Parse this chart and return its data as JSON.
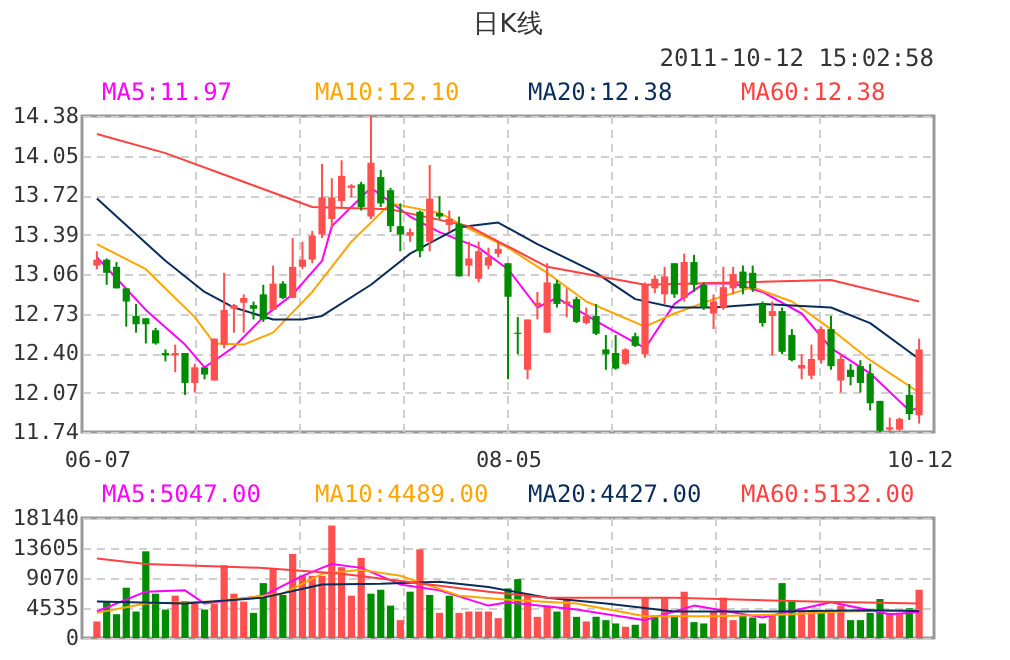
{
  "chart_data": [
    {
      "type": "candlestick",
      "title": "日K线",
      "annotations": [
        "2011-10-12 15:02:58"
      ],
      "categories": [
        "06-07",
        null,
        null,
        null,
        null,
        null,
        null,
        null,
        null,
        null,
        null,
        null,
        null,
        null,
        null,
        null,
        null,
        null,
        null,
        null,
        null,
        null,
        null,
        null,
        null,
        null,
        null,
        null,
        null,
        null,
        null,
        null,
        null,
        null,
        null,
        null,
        null,
        null,
        null,
        null,
        null,
        null,
        "08-05",
        null,
        null,
        null,
        null,
        null,
        null,
        null,
        null,
        null,
        null,
        null,
        null,
        null,
        null,
        null,
        null,
        null,
        null,
        null,
        null,
        null,
        null,
        null,
        null,
        null,
        null,
        null,
        null,
        null,
        null,
        null,
        null,
        null,
        null,
        null,
        null,
        null,
        null,
        null,
        null,
        null,
        "10-12"
      ],
      "ohlc": [
        [
          13.13,
          13.25,
          13.1,
          13.18
        ],
        [
          13.18,
          13.19,
          12.97,
          13.07
        ],
        [
          13.12,
          13.16,
          12.94,
          12.94
        ],
        [
          12.94,
          12.94,
          12.62,
          12.83
        ],
        [
          12.71,
          12.81,
          12.57,
          12.64
        ],
        [
          12.69,
          12.69,
          12.48,
          12.64
        ],
        [
          12.59,
          12.61,
          12.47,
          12.48
        ],
        [
          12.4,
          12.43,
          12.33,
          12.38
        ],
        [
          12.38,
          12.47,
          12.24,
          12.4
        ],
        [
          12.4,
          12.4,
          12.05,
          12.15
        ],
        [
          12.15,
          12.31,
          12.07,
          12.28
        ],
        [
          12.28,
          12.28,
          12.18,
          12.22
        ],
        [
          12.17,
          12.52,
          12.17,
          12.52
        ],
        [
          12.47,
          13.07,
          12.44,
          12.76
        ],
        [
          12.77,
          12.81,
          12.57,
          12.8
        ],
        [
          12.82,
          12.89,
          12.57,
          12.86
        ],
        [
          12.8,
          12.83,
          12.68,
          12.77
        ],
        [
          12.89,
          12.97,
          12.66,
          12.68
        ],
        [
          12.76,
          13.13,
          12.76,
          12.98
        ],
        [
          12.98,
          13.0,
          12.85,
          12.86
        ],
        [
          12.86,
          13.36,
          12.86,
          13.12
        ],
        [
          13.12,
          13.33,
          13.1,
          13.18
        ],
        [
          13.18,
          13.42,
          13.15,
          13.38
        ],
        [
          13.39,
          13.98,
          13.36,
          13.7
        ],
        [
          13.52,
          13.86,
          13.44,
          13.7
        ],
        [
          13.67,
          14.01,
          13.62,
          13.88
        ],
        [
          13.78,
          13.81,
          13.7,
          13.8
        ],
        [
          13.81,
          13.83,
          13.59,
          13.62
        ],
        [
          13.54,
          14.38,
          13.52,
          13.99
        ],
        [
          13.87,
          13.93,
          13.62,
          13.65
        ],
        [
          13.76,
          13.78,
          13.41,
          13.46
        ],
        [
          13.46,
          13.65,
          13.25,
          13.39
        ],
        [
          13.38,
          13.44,
          13.33,
          13.41
        ],
        [
          13.58,
          13.59,
          13.2,
          13.25
        ],
        [
          13.33,
          13.97,
          13.25,
          13.69
        ],
        [
          13.57,
          13.71,
          13.52,
          13.54
        ],
        [
          13.47,
          13.59,
          13.41,
          13.52
        ],
        [
          13.48,
          13.54,
          13.04,
          13.04
        ],
        [
          13.13,
          13.33,
          13.04,
          13.19
        ],
        [
          13.02,
          13.33,
          12.99,
          13.25
        ],
        [
          13.13,
          13.28,
          13.1,
          13.2
        ],
        [
          13.23,
          13.33,
          13.2,
          13.27
        ],
        [
          13.15,
          13.15,
          12.18,
          12.87
        ],
        [
          12.57,
          12.7,
          12.39,
          12.56
        ],
        [
          12.26,
          12.68,
          12.18,
          12.68
        ],
        [
          12.8,
          12.91,
          12.68,
          12.82
        ],
        [
          12.57,
          13.15,
          12.57,
          12.99
        ],
        [
          12.98,
          13.01,
          12.78,
          12.81
        ],
        [
          12.81,
          12.94,
          12.7,
          12.83
        ],
        [
          12.85,
          12.87,
          12.65,
          12.66
        ],
        [
          12.65,
          12.78,
          12.64,
          12.71
        ],
        [
          12.71,
          12.81,
          12.55,
          12.56
        ],
        [
          12.43,
          12.55,
          12.26,
          12.39
        ],
        [
          12.4,
          12.55,
          12.26,
          12.27
        ],
        [
          12.31,
          12.44,
          12.3,
          12.43
        ],
        [
          12.54,
          12.57,
          12.45,
          12.46
        ],
        [
          12.39,
          12.99,
          12.36,
          12.97
        ],
        [
          12.94,
          13.05,
          12.9,
          13.02
        ],
        [
          12.89,
          13.12,
          12.81,
          13.04
        ],
        [
          13.15,
          13.15,
          12.86,
          12.89
        ],
        [
          12.86,
          13.23,
          12.83,
          13.16
        ],
        [
          13.16,
          13.22,
          12.91,
          12.97
        ],
        [
          12.97,
          12.99,
          12.76,
          12.78
        ],
        [
          12.73,
          12.89,
          12.6,
          12.83
        ],
        [
          12.78,
          13.12,
          12.76,
          12.95
        ],
        [
          12.94,
          13.12,
          12.89,
          13.06
        ],
        [
          13.08,
          13.13,
          12.89,
          12.94
        ],
        [
          13.07,
          13.13,
          12.91,
          12.94
        ],
        [
          12.81,
          12.83,
          12.62,
          12.65
        ],
        [
          12.71,
          12.83,
          12.38,
          12.75
        ],
        [
          12.75,
          12.78,
          12.39,
          12.41
        ],
        [
          12.55,
          12.6,
          12.33,
          12.34
        ],
        [
          12.27,
          12.39,
          12.18,
          12.3
        ],
        [
          12.21,
          12.47,
          12.18,
          12.35
        ],
        [
          12.34,
          12.62,
          12.31,
          12.6
        ],
        [
          12.6,
          12.71,
          12.26,
          12.29
        ],
        [
          12.17,
          12.39,
          12.07,
          12.35
        ],
        [
          12.26,
          12.31,
          12.13,
          12.2
        ],
        [
          12.29,
          12.34,
          12.07,
          12.15
        ],
        [
          12.23,
          12.31,
          11.92,
          11.98
        ],
        [
          12.0,
          12.0,
          11.74,
          11.75
        ],
        [
          11.76,
          11.86,
          11.74,
          11.78
        ],
        [
          11.76,
          11.86,
          11.75,
          11.85
        ],
        [
          12.05,
          12.14,
          11.84,
          11.89
        ],
        [
          11.88,
          12.52,
          11.81,
          12.43
        ]
      ],
      "colors": [
        "#ff5050",
        "#008c00",
        "#008c00",
        "#008c00",
        "#008c00",
        "#008c00",
        "#008c00",
        "#008c00",
        "#ff5050",
        "#008c00",
        "#ff5050",
        "#008c00",
        "#ff5050",
        "#ff5050",
        "#ff5050",
        "#ff5050",
        "#008c00",
        "#008c00",
        "#ff5050",
        "#008c00",
        "#ff5050",
        "#ff5050",
        "#ff5050",
        "#ff5050",
        "#ff5050",
        "#ff5050",
        "#ff5050",
        "#008c00",
        "#ff5050",
        "#008c00",
        "#008c00",
        "#008c00",
        "#ff5050",
        "#008c00",
        "#ff5050",
        "#008c00",
        "#ff5050",
        "#008c00",
        "#ff5050",
        "#ff5050",
        "#ff5050",
        "#ff5050",
        "#008c00",
        "#008c00",
        "#ff5050",
        "#ff5050",
        "#ff5050",
        "#008c00",
        "#ff5050",
        "#008c00",
        "#ff5050",
        "#008c00",
        "#008c00",
        "#008c00",
        "#ff5050",
        "#008c00",
        "#ff5050",
        "#ff5050",
        "#ff5050",
        "#008c00",
        "#ff5050",
        "#008c00",
        "#008c00",
        "#ff5050",
        "#ff5050",
        "#ff5050",
        "#008c00",
        "#008c00",
        "#008c00",
        "#ff5050",
        "#008c00",
        "#008c00",
        "#ff5050",
        "#ff5050",
        "#ff5050",
        "#008c00",
        "#ff5050",
        "#008c00",
        "#008c00",
        "#008c00",
        "#008c00",
        "#ff5050",
        "#ff5050",
        "#008c00",
        "#ff5050"
      ],
      "ylim": [
        11.74,
        14.38
      ],
      "yticks": [
        11.74,
        12.07,
        {
          "value": 12.4,
          "label": "12.40"
        },
        12.73,
        13.06,
        13.39,
        13.72,
        14.05,
        14.38
      ],
      "grid": true,
      "legend": "top",
      "series": [
        {
          "name": "MA5:11.97",
          "color": "#ff00ff",
          "type": "line",
          "values": [
            13.2,
            null,
            null,
            null,
            null,
            12.76,
            null,
            null,
            null,
            12.47,
            null,
            12.28,
            null,
            null,
            12.45,
            null,
            null,
            12.7,
            null,
            null,
            12.89,
            null,
            null,
            13.17,
            13.46,
            null,
            null,
            null,
            13.78,
            null,
            null,
            null,
            13.54,
            null,
            null,
            13.41,
            null,
            null,
            null,
            13.28,
            null,
            null,
            13.1,
            null,
            null,
            12.78,
            null,
            12.86,
            null,
            null,
            null,
            null,
            12.62,
            null,
            null,
            null,
            12.44,
            null,
            null,
            12.81,
            null,
            null,
            12.98,
            null,
            null,
            12.98,
            null,
            null,
            12.91,
            null,
            null,
            null,
            12.73,
            null,
            null,
            12.44,
            null,
            null,
            null,
            12.23,
            null,
            null,
            null,
            11.92,
            11.94
          ]
        },
        {
          "name": "MA10:12.10",
          "color": "#ffa500",
          "type": "line",
          "values": [
            13.31,
            null,
            null,
            null,
            null,
            13.1,
            null,
            null,
            null,
            null,
            12.7,
            null,
            12.48,
            null,
            null,
            12.47,
            null,
            null,
            12.57,
            null,
            null,
            null,
            12.91,
            null,
            null,
            null,
            13.33,
            null,
            null,
            null,
            13.65,
            null,
            null,
            null,
            null,
            13.57,
            null,
            null,
            13.44,
            null,
            null,
            null,
            13.28,
            null,
            null,
            null,
            13.07,
            null,
            null,
            null,
            12.83,
            null,
            null,
            null,
            null,
            null,
            12.62,
            null,
            null,
            12.73,
            null,
            null,
            null,
            12.85,
            null,
            null,
            null,
            12.95,
            null,
            null,
            null,
            12.83,
            null,
            null,
            null,
            12.6,
            null,
            null,
            null,
            12.34,
            null,
            null,
            null,
            null,
            12.07
          ]
        },
        {
          "name": "MA20:12.38",
          "color": "#0a2c5a",
          "type": "line",
          "values": [
            13.69,
            null,
            null,
            null,
            null,
            null,
            null,
            13.17,
            null,
            null,
            null,
            12.91,
            null,
            null,
            12.78,
            null,
            null,
            null,
            12.68,
            null,
            null,
            12.68,
            null,
            12.71,
            null,
            null,
            null,
            null,
            12.97,
            null,
            null,
            null,
            13.23,
            null,
            null,
            null,
            null,
            13.45,
            null,
            null,
            null,
            13.49,
            null,
            null,
            null,
            13.31,
            null,
            null,
            null,
            null,
            null,
            13.07,
            null,
            null,
            null,
            12.85,
            null,
            null,
            null,
            12.78,
            null,
            null,
            null,
            12.78,
            null,
            null,
            null,
            null,
            12.81,
            null,
            null,
            null,
            null,
            null,
            null,
            12.78,
            null,
            null,
            null,
            12.65,
            null,
            null,
            null,
            null,
            12.35
          ]
        },
        {
          "name": "MA60:12.38",
          "color": "#ff4040",
          "type": "line",
          "values": [
            14.23,
            null,
            null,
            null,
            null,
            null,
            null,
            14.07,
            null,
            null,
            null,
            null,
            null,
            null,
            13.86,
            null,
            null,
            null,
            null,
            null,
            null,
            null,
            13.62,
            null,
            null,
            null,
            null,
            null,
            null,
            null,
            13.6,
            null,
            null,
            null,
            null,
            null,
            null,
            null,
            13.46,
            null,
            null,
            null,
            null,
            null,
            null,
            null,
            13.12,
            null,
            null,
            null,
            null,
            null,
            null,
            null,
            null,
            null,
            12.97,
            null,
            null,
            null,
            null,
            null,
            null,
            null,
            null,
            null,
            null,
            null,
            null,
            null,
            null,
            null,
            null,
            null,
            null,
            13.01,
            null,
            null,
            null,
            null,
            null,
            null,
            null,
            null,
            12.83
          ]
        }
      ]
    },
    {
      "type": "bar",
      "categories": [
        null,
        null,
        null,
        null,
        null,
        null,
        null,
        null,
        null,
        null,
        null,
        null,
        null,
        null,
        null,
        null,
        null,
        null,
        null,
        null,
        null,
        null,
        null,
        null,
        null,
        null,
        null,
        null,
        null,
        null,
        null,
        null,
        null,
        null,
        null,
        null,
        null,
        null,
        null,
        null,
        null,
        null,
        null,
        null,
        null,
        null,
        null,
        null,
        null,
        null,
        null,
        null,
        null,
        null,
        null,
        null,
        null,
        null,
        null,
        null,
        null,
        null,
        null,
        null,
        null,
        null,
        null,
        null,
        null,
        null,
        null,
        null,
        null,
        null,
        null,
        null,
        null,
        null,
        null,
        null,
        null,
        null,
        null,
        null,
        null
      ],
      "values": [
        2500,
        5500,
        3600,
        7600,
        4000,
        13100,
        6700,
        4300,
        6400,
        5600,
        5200,
        4300,
        5200,
        11000,
        6700,
        5500,
        3800,
        8300,
        10500,
        6500,
        12700,
        9400,
        9400,
        9400,
        17000,
        10700,
        6400,
        12100,
        6700,
        7300,
        4900,
        2700,
        7000,
        13400,
        6500,
        3800,
        6400,
        3800,
        4000,
        4000,
        4000,
        3000,
        7500,
        8900,
        6700,
        3200,
        4900,
        4000,
        5800,
        3200,
        2500,
        3200,
        2700,
        2200,
        1700,
        2000,
        6100,
        3400,
        6100,
        3400,
        7000,
        2400,
        2200,
        4000,
        6100,
        2700,
        3400,
        3100,
        2200,
        3600,
        8300,
        5700,
        3900,
        3900,
        3800,
        3800,
        4900,
        2700,
        2700,
        3800,
        5900,
        3800,
        3600,
        4500,
        7300
      ],
      "colors": [
        "#ff5050",
        "#008c00",
        "#008c00",
        "#008c00",
        "#008c00",
        "#008c00",
        "#008c00",
        "#008c00",
        "#ff5050",
        "#008c00",
        "#ff5050",
        "#008c00",
        "#ff5050",
        "#ff5050",
        "#ff5050",
        "#ff5050",
        "#008c00",
        "#008c00",
        "#ff5050",
        "#008c00",
        "#ff5050",
        "#ff5050",
        "#ff5050",
        "#ff5050",
        "#ff5050",
        "#ff5050",
        "#ff5050",
        "#ff5050",
        "#008c00",
        "#008c00",
        "#008c00",
        "#ff5050",
        "#008c00",
        "#ff5050",
        "#008c00",
        "#ff5050",
        "#008c00",
        "#ff5050",
        "#ff5050",
        "#ff5050",
        "#ff5050",
        "#ff5050",
        "#008c00",
        "#008c00",
        "#ff5050",
        "#ff5050",
        "#ff5050",
        "#008c00",
        "#ff5050",
        "#008c00",
        "#ff5050",
        "#008c00",
        "#008c00",
        "#008c00",
        "#ff5050",
        "#008c00",
        "#ff5050",
        "#008c00",
        "#ff5050",
        "#008c00",
        "#ff5050",
        "#008c00",
        "#008c00",
        "#ff5050",
        "#ff5050",
        "#ff5050",
        "#008c00",
        "#008c00",
        "#008c00",
        "#ff5050",
        "#008c00",
        "#008c00",
        "#ff5050",
        "#ff5050",
        "#008c00",
        "#ff5050",
        "#ff5050",
        "#008c00",
        "#008c00",
        "#008c00",
        "#008c00",
        "#ff5050",
        "#ff5050",
        "#008c00",
        "#ff5050"
      ],
      "ylim": [
        0,
        18140
      ],
      "yticks": [
        0,
        4535,
        9070,
        13605,
        18140
      ],
      "grid": true,
      "legend": "top",
      "tick_labels": "y",
      "series": [
        {
          "name": "MA5:5047.00",
          "color": "#ff00ff",
          "type": "line",
          "values": [
            4000,
            null,
            null,
            null,
            null,
            7000,
            null,
            null,
            null,
            7200,
            null,
            5200,
            null,
            null,
            null,
            null,
            null,
            6400,
            null,
            null,
            null,
            9400,
            null,
            null,
            11200,
            null,
            null,
            10600,
            null,
            null,
            null,
            8100,
            null,
            null,
            null,
            7200,
            null,
            null,
            null,
            null,
            4900,
            null,
            5400,
            null,
            null,
            null,
            null,
            null,
            null,
            4300,
            null,
            null,
            null,
            null,
            null,
            null,
            2700,
            null,
            null,
            null,
            null,
            4900,
            null,
            null,
            null,
            null,
            null,
            null,
            3100,
            null,
            null,
            null,
            null,
            null,
            null,
            5400,
            null,
            null,
            null,
            null,
            null,
            3600,
            null,
            null,
            3900
          ]
        },
        {
          "name": "MA10:4489.00",
          "color": "#ffa500",
          "type": "line",
          "values": [
            3800,
            null,
            null,
            null,
            null,
            5200,
            null,
            null,
            null,
            null,
            null,
            null,
            5500,
            null,
            null,
            null,
            null,
            null,
            null,
            6700,
            null,
            null,
            null,
            9700,
            null,
            null,
            null,
            10300,
            null,
            null,
            null,
            9400,
            null,
            null,
            null,
            null,
            null,
            6400,
            null,
            null,
            null,
            null,
            5800,
            null,
            null,
            null,
            null,
            null,
            null,
            5200,
            null,
            null,
            null,
            null,
            null,
            null,
            3300,
            null,
            null,
            null,
            null,
            null,
            null,
            3300,
            null,
            null,
            null,
            null,
            null,
            null,
            null,
            3600,
            null,
            null,
            null,
            null,
            4000,
            null,
            null,
            null,
            null,
            null,
            null,
            null,
            4200
          ]
        },
        {
          "name": "MA20:4427.00",
          "color": "#0a2c5a",
          "type": "line",
          "values": [
            5500,
            null,
            null,
            null,
            null,
            null,
            null,
            null,
            null,
            5200,
            null,
            null,
            null,
            null,
            null,
            null,
            null,
            6100,
            null,
            null,
            null,
            null,
            null,
            8100,
            null,
            null,
            null,
            null,
            null,
            8200,
            null,
            null,
            null,
            null,
            null,
            8500,
            null,
            null,
            null,
            null,
            7700,
            null,
            null,
            null,
            null,
            null,
            6100,
            null,
            null,
            null,
            null,
            null,
            5200,
            null,
            null,
            null,
            null,
            null,
            null,
            4000,
            null,
            null,
            null,
            null,
            null,
            null,
            null,
            null,
            null,
            4000,
            null,
            null,
            null,
            null,
            null,
            null,
            null,
            null,
            null,
            4200,
            null,
            null,
            null,
            null,
            4100
          ]
        },
        {
          "name": "MA60:5132.00",
          "color": "#ff4040",
          "type": "line",
          "values": [
            12000,
            null,
            null,
            null,
            null,
            11200,
            null,
            null,
            null,
            null,
            null,
            null,
            null,
            null,
            null,
            null,
            null,
            10600,
            null,
            null,
            null,
            null,
            null,
            null,
            null,
            9700,
            null,
            null,
            null,
            null,
            null,
            null,
            null,
            null,
            null,
            null,
            null,
            null,
            null,
            null,
            7000,
            null,
            null,
            null,
            null,
            null,
            6100,
            null,
            null,
            null,
            null,
            null,
            null,
            null,
            null,
            null,
            null,
            null,
            null,
            6100,
            null,
            null,
            null,
            null,
            null,
            null,
            null,
            null,
            null,
            null,
            null,
            null,
            null,
            5500,
            null,
            null,
            null,
            null,
            null,
            null,
            null,
            null,
            null,
            null,
            5200
          ]
        }
      ]
    }
  ]
}
